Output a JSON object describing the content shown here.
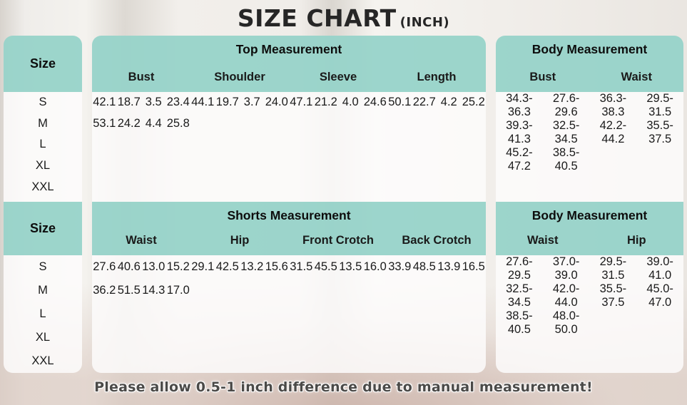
{
  "title": {
    "main": "SIZE CHART",
    "unit": "(INCH)"
  },
  "note": "Please allow 0.5-1 inch difference due to manual measurement!",
  "colors": {
    "header_bg": "#97d3c9",
    "card_bg": "#fdfcfb",
    "title_text": "#262626",
    "note_text": "#4b4a48"
  },
  "chart_data": [
    {
      "type": "table",
      "size_header": "Size",
      "sizes": [
        "S",
        "M",
        "L",
        "XL",
        "XXL"
      ],
      "group_title": "Top Measurement",
      "group_columns": [
        "Bust",
        "Shoulder",
        "Sleeve",
        "Length"
      ],
      "group_rows": [
        [
          "42.1",
          "18.7",
          "3.5",
          "23.4"
        ],
        [
          "44.1",
          "19.7",
          "3.7",
          "24.0"
        ],
        [
          "47.1",
          "21.2",
          "4.0",
          "24.6"
        ],
        [
          "50.1",
          "22.7",
          "4.2",
          "25.2"
        ],
        [
          "53.1",
          "24.2",
          "4.4",
          "25.8"
        ]
      ],
      "body_title": "Body Measurement",
      "body_columns": [
        "Bust",
        "Waist"
      ],
      "body_rows": [
        [
          "34.3-36.3",
          "27.6-29.6"
        ],
        [
          "36.3-38.3",
          "29.5-31.5"
        ],
        [
          "39.3-41.3",
          "32.5-34.5"
        ],
        [
          "42.2-44.2",
          "35.5-37.5"
        ],
        [
          "45.2-47.2",
          "38.5-40.5"
        ]
      ]
    },
    {
      "type": "table",
      "size_header": "Size",
      "sizes": [
        "S",
        "M",
        "L",
        "XL",
        "XXL"
      ],
      "group_title": "Shorts Measurement",
      "group_columns": [
        "Waist",
        "Hip",
        "Front Crotch",
        "Back Crotch"
      ],
      "group_rows": [
        [
          "27.6",
          "40.6",
          "13.0",
          "15.2"
        ],
        [
          "29.1",
          "42.5",
          "13.2",
          "15.6"
        ],
        [
          "31.5",
          "45.5",
          "13.5",
          "16.0"
        ],
        [
          "33.9",
          "48.5",
          "13.9",
          "16.5"
        ],
        [
          "36.2",
          "51.5",
          "14.3",
          "17.0"
        ]
      ],
      "body_title": "Body Measurement",
      "body_columns": [
        "Waist",
        "Hip"
      ],
      "body_rows": [
        [
          "27.6-29.5",
          "37.0-39.0"
        ],
        [
          "29.5-31.5",
          "39.0-41.0"
        ],
        [
          "32.5-34.5",
          "42.0-44.0"
        ],
        [
          "35.5-37.5",
          "45.0-47.0"
        ],
        [
          "38.5-40.5",
          "48.0-50.0"
        ]
      ]
    }
  ]
}
